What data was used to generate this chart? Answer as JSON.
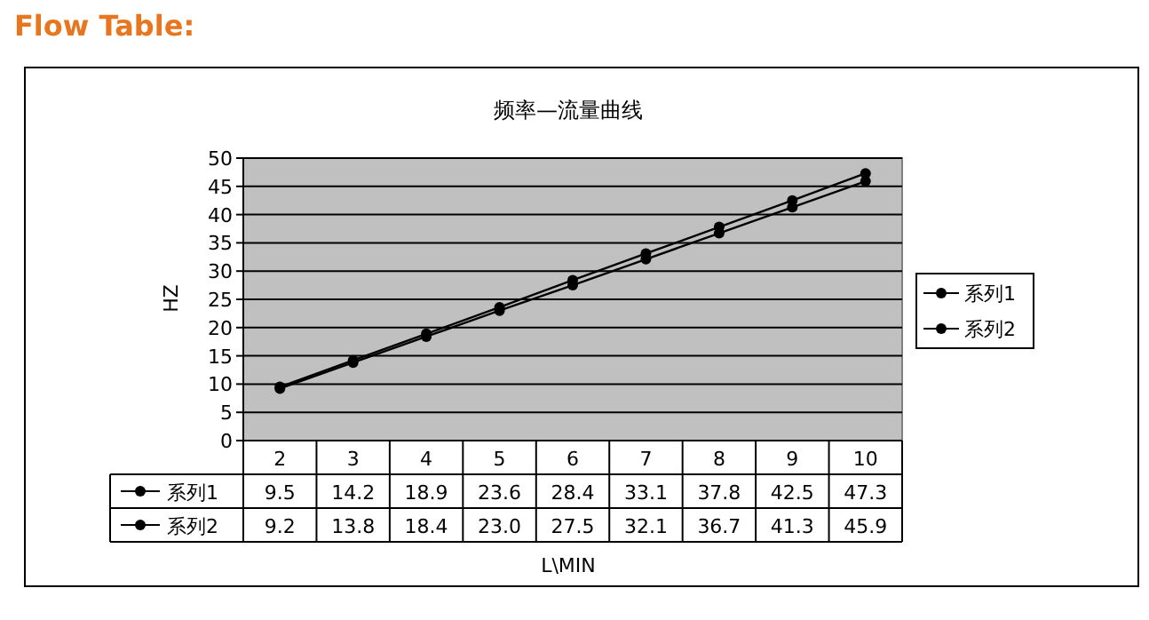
{
  "chart_data": {
    "type": "line",
    "title": "Flow Table:",
    "subtitle": "频率—流量曲线",
    "xlabel": "L\\MIN",
    "ylabel": "HZ",
    "categories": [
      "2",
      "3",
      "4",
      "5",
      "6",
      "7",
      "8",
      "9",
      "10"
    ],
    "series": [
      {
        "name": "系列1",
        "color": "#000000",
        "values": [
          9.5,
          14.2,
          18.9,
          23.6,
          28.4,
          33.1,
          37.8,
          42.5,
          47.3
        ],
        "value_labels": [
          "9.5",
          "14.2",
          "18.9",
          "23.6",
          "28.4",
          "33.1",
          "37.8",
          "42.5",
          "47.3"
        ]
      },
      {
        "name": "系列2",
        "color": "#000000",
        "values": [
          9.2,
          13.8,
          18.4,
          23.0,
          27.5,
          32.1,
          36.7,
          41.3,
          45.9
        ],
        "value_labels": [
          "9.2",
          "13.8",
          "18.4",
          "23.0",
          "27.5",
          "32.1",
          "36.7",
          "41.3",
          "45.9"
        ]
      }
    ],
    "ylim": [
      0,
      50
    ],
    "yticks": [
      0,
      5,
      10,
      15,
      20,
      25,
      30,
      35,
      40,
      45,
      50
    ],
    "grid": "y",
    "legend": "right",
    "marker": "circle"
  }
}
